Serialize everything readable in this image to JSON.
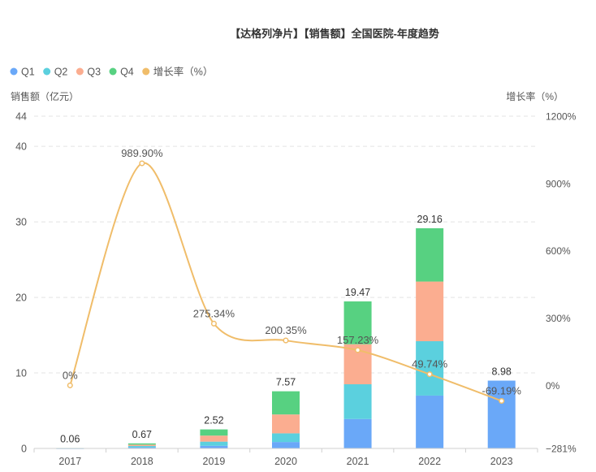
{
  "colors": {
    "Q1": "#6aa8f8",
    "Q2": "#5bd0de",
    "Q3": "#fbad90",
    "Q4": "#57d181",
    "rate": "#f0bd6a"
  },
  "chart_data": {
    "type": "bar",
    "title": "【达格列净片】【销售额】全国医院-年度趋势",
    "ylabel": "销售额（亿元）",
    "y2label": "增长率（%）",
    "ylim": [
      0,
      44
    ],
    "y_ticks": [
      0,
      10,
      20,
      30,
      40,
      44
    ],
    "y2lim": [
      -281,
      1200
    ],
    "y2_ticks": [
      "−281%",
      "0%",
      "300%",
      "600%",
      "900%",
      "1200%"
    ],
    "y2_tick_values": [
      -281,
      0,
      300,
      600,
      900,
      1200
    ],
    "categories": [
      "2017",
      "2018",
      "2019",
      "2020",
      "2021",
      "2022",
      "2023"
    ],
    "stacked": true,
    "grid": true,
    "legend_position": "top-left",
    "series": [
      {
        "name": "Q1",
        "values": [
          0.015,
          0.15,
          0.35,
          0.85,
          3.9,
          7.0,
          8.98
        ]
      },
      {
        "name": "Q2",
        "values": [
          0.015,
          0.17,
          0.55,
          1.15,
          4.6,
          7.2,
          0
        ]
      },
      {
        "name": "Q3",
        "values": [
          0.015,
          0.18,
          0.8,
          2.5,
          5.3,
          7.9,
          0
        ]
      },
      {
        "name": "Q4",
        "values": [
          0.015,
          0.17,
          0.82,
          3.07,
          5.67,
          7.06,
          0
        ]
      }
    ],
    "totals": [
      "0.06",
      "0.67",
      "2.52",
      "7.57",
      "19.47",
      "29.16",
      "8.98"
    ],
    "growth_rate": {
      "name": "增长率（%）",
      "values": [
        0,
        989.9,
        275.34,
        200.35,
        157.23,
        49.74,
        -69.19
      ],
      "labels": [
        "0%",
        "989.90%",
        "275.34%",
        "200.35%",
        "157.23%",
        "49.74%",
        "-69.19%"
      ]
    }
  }
}
